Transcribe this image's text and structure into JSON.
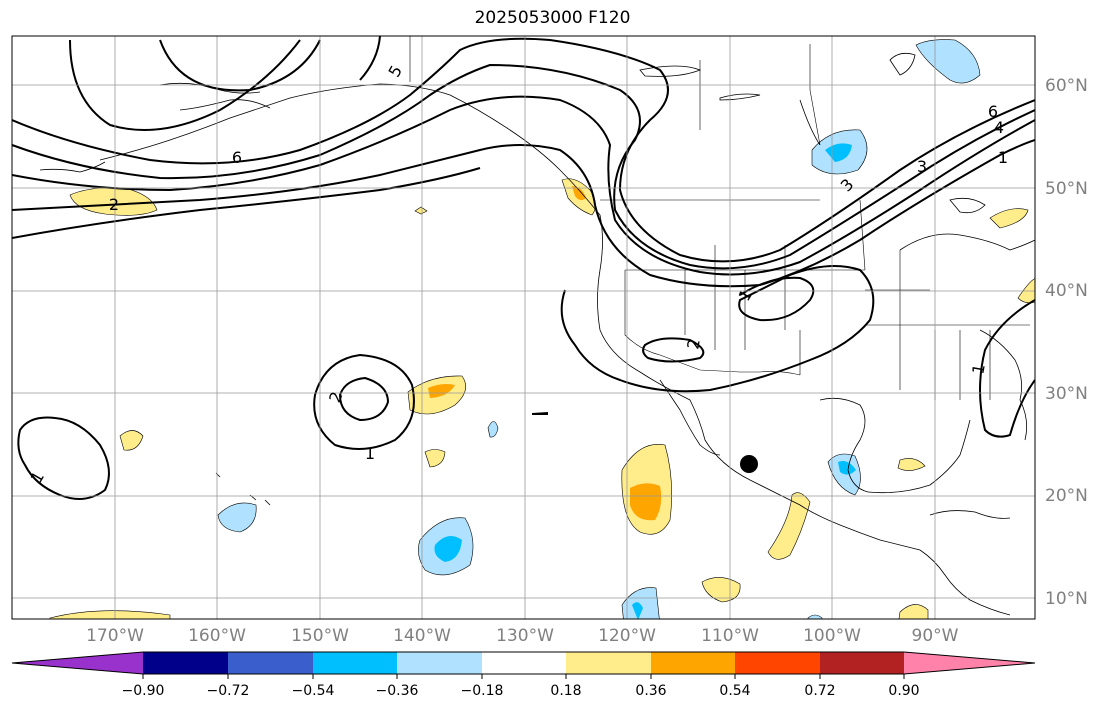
{
  "title": "2025053000 F120",
  "latitude_labels": [
    "60°N",
    "50°N",
    "40°N",
    "30°N",
    "20°N",
    "10°N"
  ],
  "longitude_labels": [
    "170°W",
    "160°W",
    "150°W",
    "140°W",
    "130°W",
    "120°W",
    "110°W",
    "100°W",
    "90°W"
  ],
  "contour_labels": [
    "5",
    "6",
    "2",
    "6",
    "4",
    "3",
    "1",
    "3",
    "1",
    "2",
    "2",
    "1",
    "1",
    "1"
  ],
  "colorbar": {
    "tick_labels": [
      "−0.90",
      "−0.72",
      "−0.54",
      "−0.36",
      "−0.18",
      "0.18",
      "0.36",
      "0.54",
      "0.72",
      "0.90"
    ],
    "colors": [
      "#9932cc",
      "#00008b",
      "#3a5fcd",
      "#00bfff",
      "#b0e2ff",
      "#ffffff",
      "#ffec8b",
      "#ffa500",
      "#ff4500",
      "#b22222",
      "#ff82ab"
    ]
  },
  "marker": {
    "name": "storm-center",
    "lon": -107.5,
    "lat": 23.0
  }
}
